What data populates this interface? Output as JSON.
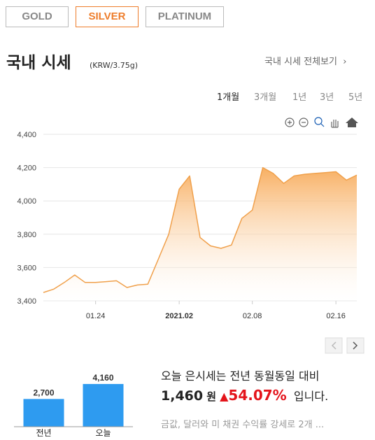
{
  "tabs": [
    "GOLD",
    "SILVER",
    "PLATINUM"
  ],
  "header": {
    "title": "국내 시세",
    "unit": "(KRW/3.75g)",
    "more": "국내 시세 전체보기"
  },
  "periods": [
    "1개월",
    "3개월",
    "1년",
    "3년",
    "5년"
  ],
  "chart_data": [
    {
      "type": "line",
      "categories": [
        null,
        null,
        null,
        null,
        null,
        "01.24",
        null,
        null,
        null,
        null,
        null,
        null,
        null,
        "2021.02",
        null,
        null,
        null,
        null,
        null,
        null,
        "02.08",
        null,
        null,
        null,
        null,
        null,
        null,
        null,
        "02.16",
        null,
        null
      ],
      "values": [
        3450,
        3470,
        3510,
        3555,
        3510,
        3510,
        3515,
        3520,
        3480,
        3495,
        3500,
        3650,
        3800,
        4070,
        4150,
        3780,
        3730,
        3715,
        3735,
        3895,
        3945,
        4200,
        4165,
        4105,
        4150,
        4160,
        4165,
        4170,
        4175,
        4125,
        4155
      ],
      "color": "#f0a04b",
      "ylim": [
        3400,
        4400
      ],
      "yticks": [
        {
          "value": 3400,
          "label": "3,400"
        },
        {
          "value": 3600,
          "label": "3,600"
        },
        {
          "value": 3800,
          "label": "3,800"
        },
        {
          "value": 4000,
          "label": "4,000"
        },
        {
          "value": 4200,
          "label": "4,200"
        },
        {
          "value": 4400,
          "label": "4,400"
        }
      ],
      "grid": true
    },
    {
      "type": "bar",
      "categories": [
        "전년",
        "오늘"
      ],
      "values": [
        2700,
        4160
      ],
      "value_labels": [
        "2,700",
        "4,160"
      ],
      "color": "#2e9bf0",
      "ylim": [
        0,
        4400
      ]
    }
  ],
  "summary": {
    "line1": "오늘 은시세는 전년 동월동일 대비",
    "diff": "1,460",
    "currency": "원",
    "arrow": "▲",
    "percent": "54.07%",
    "ending": "입니다.",
    "news": "금값, 달러와 미 채권 수익률 강세로 2개 ..."
  }
}
